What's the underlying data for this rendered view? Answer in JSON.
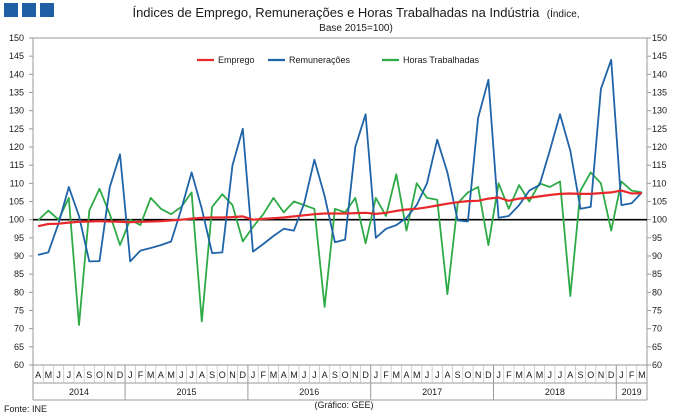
{
  "header": {
    "title_line1": "Índices de Emprego, Remunerações e Horas Trabalhadas na Indústria",
    "title_suffix": "(Índice,",
    "title_line2": "Base 2015=100)"
  },
  "footer": {
    "source": "Fonte: INE",
    "credit": "(Gráfico: GEE)"
  },
  "logo": {
    "color": "#1f5fa6"
  },
  "chart_data": {
    "type": "line",
    "ylim": [
      60,
      150
    ],
    "yticks": [
      60,
      65,
      70,
      75,
      80,
      85,
      90,
      95,
      100,
      105,
      110,
      115,
      120,
      125,
      130,
      135,
      140,
      145,
      150
    ],
    "reference_line": 100,
    "legend_position": "top-center",
    "grid": false,
    "months": [
      "A",
      "M",
      "J",
      "J",
      "A",
      "S",
      "O",
      "N",
      "D",
      "J",
      "F",
      "M",
      "A",
      "M",
      "J",
      "J",
      "A",
      "S",
      "O",
      "N",
      "D",
      "J",
      "F",
      "M",
      "A",
      "M",
      "J",
      "J",
      "A",
      "S",
      "O",
      "N",
      "D",
      "J",
      "F",
      "M",
      "A",
      "M",
      "J",
      "J",
      "A",
      "S",
      "O",
      "N",
      "D",
      "J",
      "F",
      "M",
      "A",
      "M",
      "J",
      "J",
      "A",
      "S",
      "O",
      "N",
      "D",
      "J",
      "F",
      "M"
    ],
    "years": [
      {
        "label": "2014",
        "start": 0,
        "end": 8
      },
      {
        "label": "2015",
        "start": 9,
        "end": 20
      },
      {
        "label": "2016",
        "start": 21,
        "end": 32
      },
      {
        "label": "2017",
        "start": 33,
        "end": 44
      },
      {
        "label": "2018",
        "start": 45,
        "end": 56
      },
      {
        "label": "2019",
        "start": 57,
        "end": 59
      }
    ],
    "series": [
      {
        "name": "Emprego",
        "color": "#e8292b",
        "values": [
          98.2,
          98.8,
          98.9,
          99.2,
          99.4,
          99.5,
          99.6,
          99.5,
          99.4,
          99.3,
          99.4,
          99.5,
          99.6,
          99.8,
          100.0,
          100.3,
          100.5,
          100.6,
          100.6,
          100.7,
          100.9,
          100.0,
          100.2,
          100.4,
          100.6,
          100.9,
          101.2,
          101.5,
          101.7,
          101.7,
          101.7,
          101.8,
          101.9,
          101.6,
          101.9,
          102.4,
          102.8,
          103.0,
          103.4,
          103.9,
          104.4,
          104.8,
          105.1,
          105.2,
          105.8,
          106.1,
          105.2,
          105.8,
          106.0,
          106.4,
          106.8,
          107.1,
          107.2,
          107.1,
          107.1,
          107.3,
          107.5,
          108.0,
          107.2,
          107.3
        ]
      },
      {
        "name": "Remunerações",
        "color": "#1f64a8",
        "values": [
          90.3,
          91.0,
          99.0,
          109.0,
          101.0,
          88.5,
          88.6,
          109.0,
          118.0,
          88.5,
          91.5,
          92.2,
          93.0,
          94.0,
          103.0,
          113.0,
          103.0,
          90.8,
          91.0,
          115.0,
          125.0,
          91.2,
          93.3,
          95.5,
          97.5,
          97.0,
          104.5,
          116.5,
          106.5,
          93.8,
          94.5,
          120.0,
          129.0,
          95.0,
          97.5,
          98.5,
          100.5,
          104.0,
          110.0,
          122.0,
          113.0,
          99.8,
          99.5,
          128.0,
          138.5,
          100.5,
          101.0,
          104.0,
          108.0,
          109.5,
          119.0,
          129.0,
          119.0,
          103.0,
          103.5,
          136.0,
          144.0,
          104.0,
          104.5,
          107.5
        ]
      },
      {
        "name": "Horas Trabalhadas",
        "color": "#2eaa47",
        "values": [
          99.8,
          102.5,
          100.0,
          106.0,
          71.0,
          102.5,
          108.5,
          101.5,
          93.0,
          100.0,
          98.5,
          106.0,
          103.0,
          101.5,
          103.5,
          107.5,
          72.0,
          103.5,
          107.0,
          104.0,
          94.0,
          98.0,
          101.5,
          106.0,
          102.0,
          105.0,
          104.0,
          103.0,
          76.0,
          103.0,
          102.0,
          106.0,
          93.5,
          106.0,
          101.0,
          112.5,
          97.0,
          110.0,
          106.0,
          105.5,
          79.5,
          104.5,
          107.5,
          109.0,
          93.0,
          110.0,
          103.0,
          109.5,
          105.0,
          110.0,
          109.0,
          110.5,
          79.0,
          108.0,
          113.0,
          110.0,
          97.0,
          110.5,
          108.0,
          107.5
        ]
      }
    ]
  }
}
